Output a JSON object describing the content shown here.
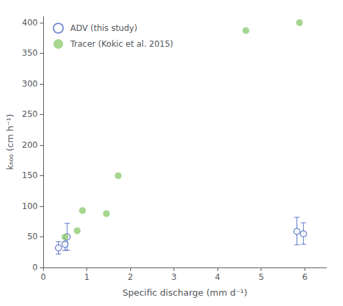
{
  "chart_data": {
    "type": "scatter",
    "xlabel": "Specific discharge (mm d⁻¹)",
    "ylabel": "k₆₀₀ (cm h⁻¹)",
    "xlim": [
      0,
      6.5
    ],
    "ylim": [
      0,
      410
    ],
    "xticks": [
      0,
      1,
      2,
      3,
      4,
      5,
      6
    ],
    "yticks": [
      0,
      50,
      100,
      150,
      200,
      250,
      300,
      350,
      400
    ],
    "grid": false,
    "legend": "upper left",
    "series": [
      {
        "name": "ADV (this study)",
        "marker": "open circle",
        "x": [
          0.35,
          0.5,
          0.55,
          5.82,
          5.97
        ],
        "values": [
          32,
          38,
          50,
          59,
          55
        ],
        "yerr_lo": [
          10,
          10,
          22,
          22,
          17
        ],
        "yerr_hi": [
          10,
          10,
          22,
          23,
          18
        ]
      },
      {
        "name": "Tracer (Kokic et al. 2015)",
        "marker": "circle",
        "x": [
          0.5,
          0.78,
          0.9,
          1.45,
          1.72,
          4.65,
          5.88
        ],
        "values": [
          50,
          60,
          93,
          88,
          150,
          387,
          400
        ]
      }
    ]
  }
}
